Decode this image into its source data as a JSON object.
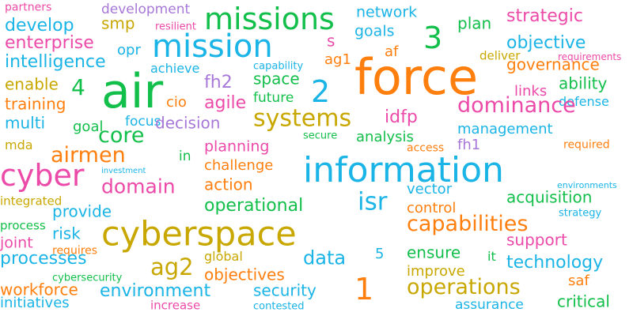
{
  "words": [
    {
      "text": "partners",
      "color": "#ec4aa8"
    },
    {
      "text": "development",
      "color": "#a778d8"
    },
    {
      "text": "resilient",
      "color": "#ec4aa8"
    },
    {
      "text": "missions",
      "color": "#12bf4a"
    },
    {
      "text": "network",
      "color": "#1ab4e6"
    },
    {
      "text": "strategic",
      "color": "#ec4aa8"
    },
    {
      "text": "develop",
      "color": "#1ab4e6"
    },
    {
      "text": "smp",
      "color": "#c8a800"
    },
    {
      "text": "goals",
      "color": "#1ab4e6"
    },
    {
      "text": "3",
      "color": "#12bf4a"
    },
    {
      "text": "plan",
      "color": "#12bf4a"
    },
    {
      "text": "enterprise",
      "color": "#ec4aa8"
    },
    {
      "text": "opr",
      "color": "#1ab4e6"
    },
    {
      "text": "mission",
      "color": "#1ab4e6"
    },
    {
      "text": "s",
      "color": "#ec4aa8"
    },
    {
      "text": "objective",
      "color": "#1ab4e6"
    },
    {
      "text": "intelligence",
      "color": "#1ab4e6"
    },
    {
      "text": "ag1",
      "color": "#ff7f0e"
    },
    {
      "text": "af",
      "color": "#ff7f0e"
    },
    {
      "text": "requirements",
      "color": "#ec4aa8"
    },
    {
      "text": "capability",
      "color": "#1ab4e6"
    },
    {
      "text": "deliver",
      "color": "#c8a800"
    },
    {
      "text": "achieve",
      "color": "#1ab4e6"
    },
    {
      "text": "governance",
      "color": "#ff7f0e"
    },
    {
      "text": "air",
      "color": "#12bf4a"
    },
    {
      "text": "force",
      "color": "#ff7f0e"
    },
    {
      "text": "space",
      "color": "#12bf4a"
    },
    {
      "text": "enable",
      "color": "#c8a800"
    },
    {
      "text": "4",
      "color": "#12bf4a"
    },
    {
      "text": "fh2",
      "color": "#a778d8"
    },
    {
      "text": "2",
      "color": "#1ab4e6"
    },
    {
      "text": "ability",
      "color": "#12bf4a"
    },
    {
      "text": "links",
      "color": "#ec4aa8"
    },
    {
      "text": "training",
      "color": "#ff7f0e"
    },
    {
      "text": "cio",
      "color": "#ff7f0e"
    },
    {
      "text": "agile",
      "color": "#ec4aa8"
    },
    {
      "text": "future",
      "color": "#12bf4a"
    },
    {
      "text": "defense",
      "color": "#1ab4e6"
    },
    {
      "text": "systems",
      "color": "#c8a800"
    },
    {
      "text": "idfp",
      "color": "#ec4aa8"
    },
    {
      "text": "dominance",
      "color": "#ec4aa8"
    },
    {
      "text": "multi",
      "color": "#1ab4e6"
    },
    {
      "text": "goal",
      "color": "#12bf4a"
    },
    {
      "text": "focus",
      "color": "#1ab4e6"
    },
    {
      "text": "decision",
      "color": "#a778d8"
    },
    {
      "text": "management",
      "color": "#1ab4e6"
    },
    {
      "text": "mda",
      "color": "#c8a800"
    },
    {
      "text": "core",
      "color": "#12bf4a"
    },
    {
      "text": "secure",
      "color": "#12bf4a"
    },
    {
      "text": "analysis",
      "color": "#12bf4a"
    },
    {
      "text": "fh1",
      "color": "#a778d8"
    },
    {
      "text": "required",
      "color": "#ff7f0e"
    },
    {
      "text": "airmen",
      "color": "#ff7f0e"
    },
    {
      "text": "planning",
      "color": "#ec4aa8"
    },
    {
      "text": "access",
      "color": "#ff7f0e"
    },
    {
      "text": "in",
      "color": "#12bf4a"
    },
    {
      "text": "information",
      "color": "#1ab4e6"
    },
    {
      "text": "cyber",
      "color": "#ec4aa8"
    },
    {
      "text": "investment",
      "color": "#1ab4e6"
    },
    {
      "text": "challenge",
      "color": "#ff7f0e"
    },
    {
      "text": "environments",
      "color": "#1ab4e6"
    },
    {
      "text": "domain",
      "color": "#ec4aa8"
    },
    {
      "text": "action",
      "color": "#ff7f0e"
    },
    {
      "text": "vector",
      "color": "#1ab4e6"
    },
    {
      "text": "acquisition",
      "color": "#12bf4a"
    },
    {
      "text": "integrated",
      "color": "#c8a800"
    },
    {
      "text": "isr",
      "color": "#1ab4e6"
    },
    {
      "text": "operational",
      "color": "#12bf4a"
    },
    {
      "text": "control",
      "color": "#ff7f0e"
    },
    {
      "text": "provide",
      "color": "#1ab4e6"
    },
    {
      "text": "strategy",
      "color": "#1ab4e6"
    },
    {
      "text": "capabilities",
      "color": "#ff7f0e"
    },
    {
      "text": "process",
      "color": "#12bf4a"
    },
    {
      "text": "cyberspace",
      "color": "#c8a800"
    },
    {
      "text": "risk",
      "color": "#1ab4e6"
    },
    {
      "text": "support",
      "color": "#ec4aa8"
    },
    {
      "text": "joint",
      "color": "#ec4aa8"
    },
    {
      "text": "requires",
      "color": "#ff7f0e"
    },
    {
      "text": "ensure",
      "color": "#12bf4a"
    },
    {
      "text": "processes",
      "color": "#1ab4e6"
    },
    {
      "text": "data",
      "color": "#1ab4e6"
    },
    {
      "text": "5",
      "color": "#1ab4e6"
    },
    {
      "text": "global",
      "color": "#c8a800"
    },
    {
      "text": "it",
      "color": "#12bf4a"
    },
    {
      "text": "technology",
      "color": "#1ab4e6"
    },
    {
      "text": "ag2",
      "color": "#c8a800"
    },
    {
      "text": "objectives",
      "color": "#ff7f0e"
    },
    {
      "text": "improve",
      "color": "#c8a800"
    },
    {
      "text": "cybersecurity",
      "color": "#12bf4a"
    },
    {
      "text": "1",
      "color": "#ff7f0e"
    },
    {
      "text": "saf",
      "color": "#ff7f0e"
    },
    {
      "text": "workforce",
      "color": "#ff7f0e"
    },
    {
      "text": "environment",
      "color": "#1ab4e6"
    },
    {
      "text": "security",
      "color": "#1ab4e6"
    },
    {
      "text": "operations",
      "color": "#c8a800"
    },
    {
      "text": "initiatives",
      "color": "#1ab4e6"
    },
    {
      "text": "increase",
      "color": "#ec4aa8"
    },
    {
      "text": "contested",
      "color": "#1ab4e6"
    },
    {
      "text": "assurance",
      "color": "#1ab4e6"
    },
    {
      "text": "critical",
      "color": "#12bf4a"
    }
  ]
}
